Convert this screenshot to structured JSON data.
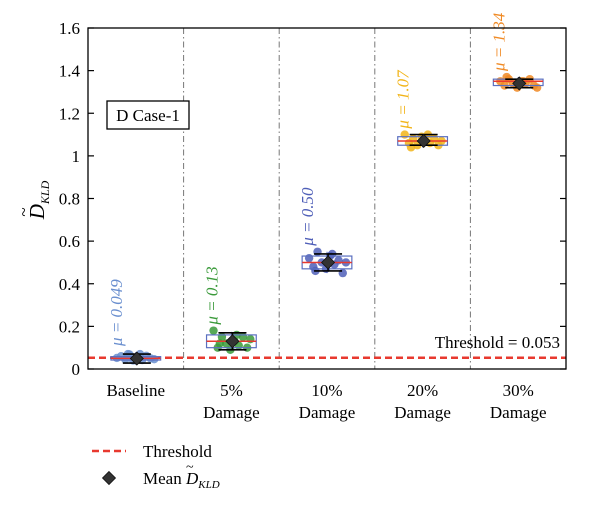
{
  "chart_data": {
    "type": "scatter",
    "ylabel": "D̃KLD",
    "ylabel_main": "D",
    "ylabel_sub": "KLD",
    "ylim": [
      0,
      1.6
    ],
    "yticks": [
      "0",
      "0.2",
      "0.4",
      "0.6",
      "0.8",
      "1",
      "1.2",
      "1.4",
      "1.6"
    ],
    "categories": [
      {
        "line1": "Baseline",
        "line2": ""
      },
      {
        "line1": "5%",
        "line2": "Damage"
      },
      {
        "line1": "10%",
        "line2": "Damage"
      },
      {
        "line1": "20%",
        "line2": "Damage"
      },
      {
        "line1": "30%",
        "line2": "Damage"
      }
    ],
    "case_label": "D Case-1",
    "threshold": 0.053,
    "threshold_label": "Threshold = 0.053",
    "groups": [
      {
        "mean_label": "μ = 0.049",
        "mean": 0.049,
        "box": [
          0.042,
          0.058
        ],
        "median": 0.05,
        "whisker": [
          0.02,
          0.08
        ],
        "err": [
          0.028,
          0.07
        ],
        "color": "#6a8fcf",
        "points": [
          [
            -0.36,
            0.052
          ],
          [
            -0.28,
            0.06
          ],
          [
            -0.2,
            0.045
          ],
          [
            -0.12,
            0.068
          ],
          [
            -0.05,
            0.04
          ],
          [
            0.04,
            0.055
          ],
          [
            0.12,
            0.042
          ],
          [
            0.2,
            0.062
          ],
          [
            0.28,
            0.05
          ],
          [
            0.35,
            0.046
          ],
          [
            -0.15,
            0.07
          ],
          [
            0.08,
            0.07
          ]
        ]
      },
      {
        "mean_label": "μ = 0.13",
        "mean": 0.13,
        "box": [
          0.1,
          0.16
        ],
        "median": 0.13,
        "whisker": [
          0.09,
          0.18
        ],
        "err": [
          0.09,
          0.17
        ],
        "color": "#3a9a3a",
        "points": [
          [
            -0.34,
            0.18
          ],
          [
            -0.26,
            0.1
          ],
          [
            -0.18,
            0.15
          ],
          [
            -0.1,
            0.12
          ],
          [
            -0.02,
            0.09
          ],
          [
            0.06,
            0.13
          ],
          [
            0.14,
            0.11
          ],
          [
            0.22,
            0.15
          ],
          [
            0.3,
            0.1
          ],
          [
            0.36,
            0.14
          ],
          [
            -0.22,
            0.12
          ],
          [
            0.1,
            0.16
          ]
        ]
      },
      {
        "mean_label": "μ = 0.50",
        "mean": 0.5,
        "box": [
          0.47,
          0.53
        ],
        "median": 0.5,
        "whisker": [
          0.45,
          0.55
        ],
        "err": [
          0.46,
          0.54
        ],
        "color": "#4f5fb8",
        "points": [
          [
            -0.34,
            0.52
          ],
          [
            -0.26,
            0.48
          ],
          [
            -0.18,
            0.55
          ],
          [
            -0.1,
            0.5
          ],
          [
            -0.02,
            0.47
          ],
          [
            0.06,
            0.53
          ],
          [
            0.14,
            0.49
          ],
          [
            0.22,
            0.51
          ],
          [
            0.3,
            0.45
          ],
          [
            0.36,
            0.5
          ],
          [
            -0.22,
            0.46
          ],
          [
            0.1,
            0.54
          ]
        ]
      },
      {
        "mean_label": "μ = 1.07",
        "mean": 1.07,
        "box": [
          1.05,
          1.09
        ],
        "median": 1.07,
        "whisker": [
          1.04,
          1.1
        ],
        "err": [
          1.05,
          1.1
        ],
        "color": "#f2b418",
        "points": [
          [
            -0.34,
            1.1
          ],
          [
            -0.26,
            1.06
          ],
          [
            -0.18,
            1.08
          ],
          [
            -0.1,
            1.05
          ],
          [
            -0.02,
            1.09
          ],
          [
            0.06,
            1.07
          ],
          [
            0.14,
            1.06
          ],
          [
            0.22,
            1.08
          ],
          [
            0.3,
            1.05
          ],
          [
            0.36,
            1.07
          ],
          [
            -0.22,
            1.04
          ],
          [
            0.1,
            1.1
          ]
        ]
      },
      {
        "mean_label": "μ = 1.34",
        "mean": 1.34,
        "box": [
          1.33,
          1.36
        ],
        "median": 1.35,
        "whisker": [
          1.31,
          1.37
        ],
        "err": [
          1.32,
          1.36
        ],
        "color": "#f08a24",
        "points": [
          [
            -0.34,
            1.35
          ],
          [
            -0.26,
            1.33
          ],
          [
            -0.18,
            1.36
          ],
          [
            -0.1,
            1.34
          ],
          [
            -0.02,
            1.32
          ],
          [
            0.06,
            1.35
          ],
          [
            0.14,
            1.34
          ],
          [
            0.22,
            1.36
          ],
          [
            0.3,
            1.33
          ],
          [
            0.36,
            1.32
          ],
          [
            -0.22,
            1.37
          ],
          [
            0.1,
            1.35
          ]
        ]
      }
    ],
    "legend": [
      {
        "kind": "line",
        "label": "Threshold"
      },
      {
        "kind": "marker",
        "label_main": "Mean",
        "label_symbol": "D",
        "label_sub": "KLD"
      }
    ],
    "colors": {
      "threshold": "#e8392f",
      "mean_marker": "#333333",
      "box_edge": "#5a6fc0",
      "median": "#e8392f",
      "grid": "#777777"
    }
  }
}
